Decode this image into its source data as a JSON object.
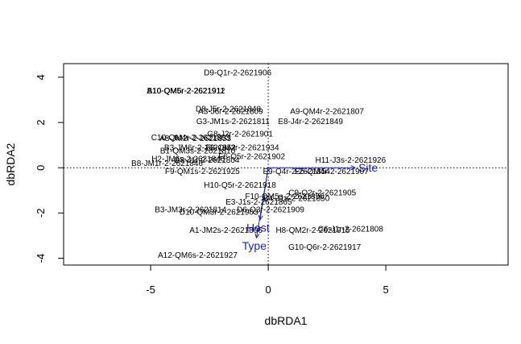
{
  "chart_data": {
    "type": "scatter",
    "xlabel": "dbRDA1",
    "ylabel": "dbRDA2",
    "xlim": [
      -8.7,
      10.2
    ],
    "ylim": [
      -4.3,
      4.6
    ],
    "xticks": [
      -5,
      0,
      5
    ],
    "yticks": [
      -4,
      -2,
      0,
      2,
      4
    ],
    "zero_lines": true,
    "points": [
      {
        "label": "D9-Q1r-2-2621906",
        "x": -1.3,
        "y": 4.2
      },
      {
        "label": "B10-QM6r-2-2621911",
        "x": -3.5,
        "y": 3.4
      },
      {
        "label": "A10-QM5r-2-2621912",
        "x": -3.5,
        "y": 3.4
      },
      {
        "label": "A3-J6r-2-2621809",
        "x": -1.6,
        "y": 2.5
      },
      {
        "label": "D8-J5r-2-2621848",
        "x": -1.7,
        "y": 2.6
      },
      {
        "label": "A9-QM4r-2-2621807",
        "x": 2.5,
        "y": 2.5
      },
      {
        "label": "G3-JM1s-2-2621811",
        "x": -1.5,
        "y": 2.05
      },
      {
        "label": "E8-J4r-2-2621849",
        "x": 1.8,
        "y": 2.05
      },
      {
        "label": "G8-J2r-2-2621901",
        "x": -1.2,
        "y": 1.5
      },
      {
        "label": "C10-QM4r-2-2621803",
        "x": -3.3,
        "y": 1.35
      },
      {
        "label": "A8-JM2r-2-2621853",
        "x": -3.1,
        "y": 1.3
      },
      {
        "label": "B3-JM6r-2-2621852",
        "x": -2.9,
        "y": 0.9
      },
      {
        "label": "F8-QM3r-2-2621934",
        "x": -1.1,
        "y": 0.9
      },
      {
        "label": "B1-QM3s-2-2621810",
        "x": -3.0,
        "y": 0.75
      },
      {
        "label": "F6-Q5r-2-2621902",
        "x": -0.7,
        "y": 0.5
      },
      {
        "label": "B8-J1r-2-2621804",
        "x": -2.6,
        "y": 0.35
      },
      {
        "label": "H2-JM6s-2-2621846",
        "x": -3.4,
        "y": 0.4
      },
      {
        "label": "B8-JM1r-2-2621846",
        "x": -4.3,
        "y": 0.2
      },
      {
        "label": "H11-J3s-2-2621926",
        "x": 3.5,
        "y": 0.35
      },
      {
        "label": "F9-QM1s-2-2621925",
        "x": -2.8,
        "y": -0.15
      },
      {
        "label": "E9-Q4r-2-2621854",
        "x": 1.2,
        "y": -0.15
      },
      {
        "label": "E5-QM4r-2-2621907",
        "x": 2.7,
        "y": -0.15
      },
      {
        "label": "H10-Q5r-2-2621918",
        "x": -1.2,
        "y": -0.75
      },
      {
        "label": "C9-Q2r-2-2621905",
        "x": 2.3,
        "y": -1.1
      },
      {
        "label": "F10-QM5s-2-2621850",
        "x": 0.7,
        "y": -1.25
      },
      {
        "label": "B4-J1s-2-2621850",
        "x": 1.2,
        "y": -1.35
      },
      {
        "label": "E3-J1s-2-2621865",
        "x": -0.4,
        "y": -1.5
      },
      {
        "label": "B3-JM3r-2-2621814",
        "x": -3.3,
        "y": -1.85
      },
      {
        "label": "D10-QM3r-2-2621903",
        "x": -2.1,
        "y": -1.95
      },
      {
        "label": "D6-Q3r-2-2621909",
        "x": 0.1,
        "y": -1.85
      },
      {
        "label": "C6-J1r-2-2621808",
        "x": 3.5,
        "y": -2.7
      },
      {
        "label": "H8-QM2r-2-2621915",
        "x": 1.9,
        "y": -2.75
      },
      {
        "label": "A1-JM2s-2-2621806",
        "x": -1.8,
        "y": -2.75
      },
      {
        "label": "G10-Q6r-2-2621917",
        "x": 2.4,
        "y": -3.5
      },
      {
        "label": "A12-QM6s-2-2621927",
        "x": -3.0,
        "y": -3.85
      }
    ],
    "vectors": [
      {
        "name": "Site",
        "x": 3.7,
        "y": 0.0
      },
      {
        "name": "Host",
        "x": -0.35,
        "y": -2.3
      },
      {
        "name": "Type",
        "x": -0.5,
        "y": -3.1
      }
    ],
    "colors": {
      "points": "#000000",
      "vectors": "#1c1ccc",
      "zero_lines": "#000000"
    }
  }
}
